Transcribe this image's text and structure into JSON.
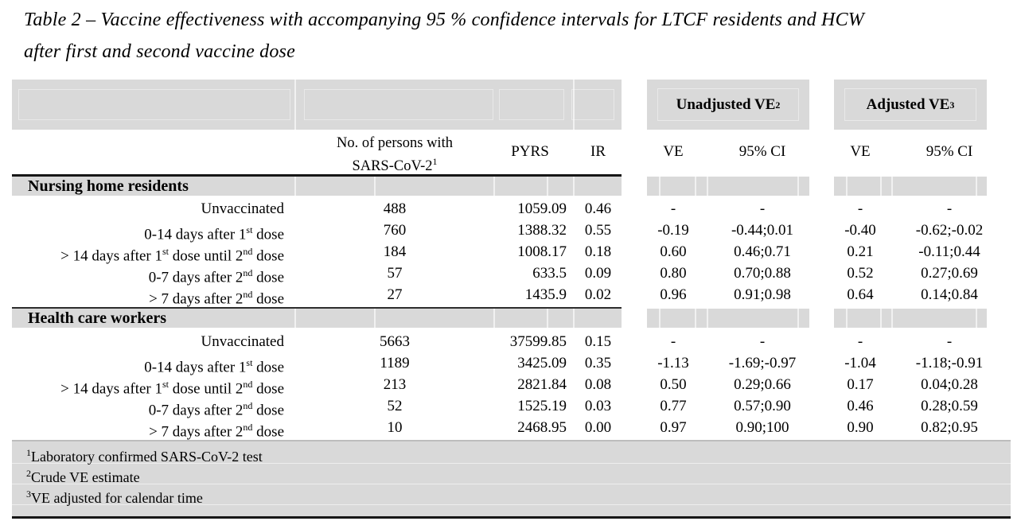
{
  "colors": {
    "band_gray": "#d9d9d9",
    "rule_dark": "#161616",
    "text": "#000000"
  },
  "title": {
    "line1": "Table 2 – Vaccine effectiveness with accompanying 95 % confidence intervals for LTCF residents and HCW",
    "line2": "after first and second vaccine dose"
  },
  "table": {
    "column_headers": {
      "persons_line1": "No. of persons with",
      "persons_line2": "SARS-CoV-2",
      "persons_sup": "1",
      "pyrs": "PYRS",
      "ir": "IR",
      "ve": "VE",
      "ci": "95% CI"
    },
    "group_headers": [
      {
        "label": "Unadjusted VE",
        "sup": "2"
      },
      {
        "label": "Adjusted VE",
        "sup": "3"
      }
    ],
    "sections": [
      {
        "name": "Nursing home residents",
        "rows": [
          {
            "label_parts": [
              {
                "t": "Unvaccinated"
              }
            ],
            "persons": "488",
            "pyrs": "1059.09",
            "ir": "0.46",
            "u_ve": "-",
            "u_ci": "-",
            "a_ve": "-",
            "a_ci": "-"
          },
          {
            "label_parts": [
              {
                "t": "0-14 days after 1"
              },
              {
                "s": "st"
              },
              {
                "t": " dose"
              }
            ],
            "persons": "760",
            "pyrs": "1388.32",
            "ir": "0.55",
            "u_ve": "-0.19",
            "u_ci": "-0.44;0.01",
            "a_ve": "-0.40",
            "a_ci": "-0.62;-0.02"
          },
          {
            "label_parts": [
              {
                "t": "> 14 days after 1"
              },
              {
                "s": "st"
              },
              {
                "t": " dose until 2"
              },
              {
                "s": "nd"
              },
              {
                "t": " dose"
              }
            ],
            "persons": "184",
            "pyrs": "1008.17",
            "ir": "0.18",
            "u_ve": "0.60",
            "u_ci": "0.46;0.71",
            "a_ve": "0.21",
            "a_ci": "-0.11;0.44"
          },
          {
            "label_parts": [
              {
                "t": "0-7 days after 2"
              },
              {
                "s": "nd"
              },
              {
                "t": " dose"
              }
            ],
            "persons": "57",
            "pyrs": "633.5",
            "ir": "0.09",
            "u_ve": "0.80",
            "u_ci": "0.70;0.88",
            "a_ve": "0.52",
            "a_ci": "0.27;0.69"
          },
          {
            "label_parts": [
              {
                "t": "> 7 days after 2"
              },
              {
                "s": "nd"
              },
              {
                "t": " dose"
              }
            ],
            "persons": "27",
            "pyrs": "1435.9",
            "ir": "0.02",
            "u_ve": "0.96",
            "u_ci": "0.91;0.98",
            "a_ve": "0.64",
            "a_ci": "0.14;0.84"
          }
        ]
      },
      {
        "name": "Health care workers",
        "rows": [
          {
            "label_parts": [
              {
                "t": "Unvaccinated"
              }
            ],
            "persons": "5663",
            "pyrs": "37599.85",
            "ir": "0.15",
            "u_ve": "-",
            "u_ci": "-",
            "a_ve": "-",
            "a_ci": "-"
          },
          {
            "label_parts": [
              {
                "t": "0-14 days after 1"
              },
              {
                "s": "st"
              },
              {
                "t": " dose"
              }
            ],
            "persons": "1189",
            "pyrs": "3425.09",
            "ir": "0.35",
            "u_ve": "-1.13",
            "u_ci": "-1.69;-0.97",
            "a_ve": "-1.04",
            "a_ci": "-1.18;-0.91"
          },
          {
            "label_parts": [
              {
                "t": "> 14 days after 1"
              },
              {
                "s": "st"
              },
              {
                "t": " dose until 2"
              },
              {
                "s": "nd"
              },
              {
                "t": " dose"
              }
            ],
            "persons": "213",
            "pyrs": "2821.84",
            "ir": "0.08",
            "u_ve": "0.50",
            "u_ci": "0.29;0.66",
            "a_ve": "0.17",
            "a_ci": "0.04;0.28"
          },
          {
            "label_parts": [
              {
                "t": "0-7 days after 2"
              },
              {
                "s": "nd"
              },
              {
                "t": " dose"
              }
            ],
            "persons": "52",
            "pyrs": "1525.19",
            "ir": "0.03",
            "u_ve": "0.77",
            "u_ci": "0.57;0.90",
            "a_ve": "0.46",
            "a_ci": "0.28;0.59"
          },
          {
            "label_parts": [
              {
                "t": "> 7 days after 2"
              },
              {
                "s": "nd"
              },
              {
                "t": " dose"
              }
            ],
            "persons": "10",
            "pyrs": "2468.95",
            "ir": "0.00",
            "u_ve": "0.97",
            "u_ci": "0.90;100",
            "a_ve": "0.90",
            "a_ci": "0.82;0.95"
          }
        ]
      }
    ],
    "footnotes": [
      {
        "sup": "1",
        "text": "Laboratory confirmed SARS-CoV-2 test"
      },
      {
        "sup": "2",
        "text": "Crude VE estimate"
      },
      {
        "sup": "3",
        "text": "VE adjusted for calendar time"
      }
    ]
  }
}
